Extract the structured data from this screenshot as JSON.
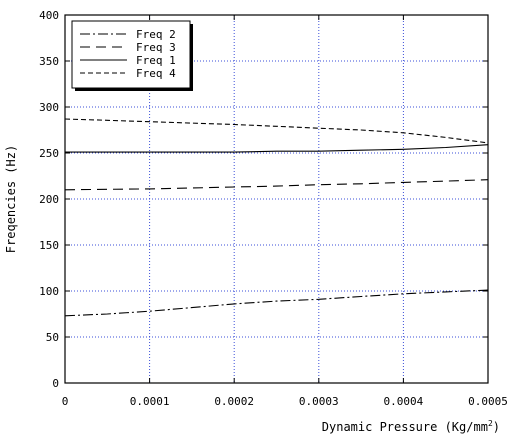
{
  "chart_data": {
    "type": "line",
    "title": "",
    "xlabel": "Dynamic Pressure (Kg/mm",
    "xlabel_sup": "2",
    "xlabel_end": ")",
    "ylabel": "Freqencies (Hz)",
    "xlim": [
      0,
      0.0005
    ],
    "ylim": [
      0,
      400
    ],
    "grid": true,
    "grid_color": "#3b4fd8",
    "legend_position": "top-left",
    "x_ticks": [
      0,
      0.0001,
      0.0002,
      0.0003,
      0.0004,
      0.0005
    ],
    "x_tick_labels": [
      "0",
      "0.0001",
      "0.0002",
      "0.0003",
      "0.0004",
      "0.0005"
    ],
    "y_ticks": [
      0,
      50,
      100,
      150,
      200,
      250,
      300,
      350,
      400
    ],
    "y_tick_labels": [
      "0",
      "50",
      "100",
      "150",
      "200",
      "250",
      "300",
      "350",
      "400"
    ],
    "series": [
      {
        "name": "Freq 2",
        "dash": "dash-dot",
        "x": [
          0,
          5e-05,
          0.0001,
          0.00015,
          0.0002,
          0.00025,
          0.0003,
          0.00035,
          0.0004,
          0.00045,
          0.0005
        ],
        "y": [
          73,
          75,
          78,
          82,
          86,
          89,
          91,
          94,
          97,
          99,
          101
        ]
      },
      {
        "name": "Freq 3",
        "dash": "long-dash",
        "x": [
          0,
          5e-05,
          0.0001,
          0.00015,
          0.0002,
          0.00025,
          0.0003,
          0.00035,
          0.0004,
          0.00045,
          0.0005
        ],
        "y": [
          210,
          210.5,
          211,
          212,
          213,
          214,
          215.5,
          216.5,
          218,
          219.5,
          221
        ]
      },
      {
        "name": "Freq 1",
        "dash": "solid",
        "x": [
          0,
          5e-05,
          0.0001,
          0.00015,
          0.0002,
          0.00025,
          0.0003,
          0.00035,
          0.0004,
          0.00045,
          0.0005
        ],
        "y": [
          251,
          251,
          251,
          251,
          251,
          252,
          252,
          253,
          254,
          256,
          259
        ]
      },
      {
        "name": "Freq 4",
        "dash": "short-dash",
        "x": [
          0,
          5e-05,
          0.0001,
          0.00015,
          0.0002,
          0.00025,
          0.0003,
          0.00035,
          0.0004,
          0.00045,
          0.0005
        ],
        "y": [
          287,
          285.5,
          284,
          282.5,
          281,
          279,
          277,
          275,
          272,
          267,
          261
        ]
      }
    ]
  }
}
